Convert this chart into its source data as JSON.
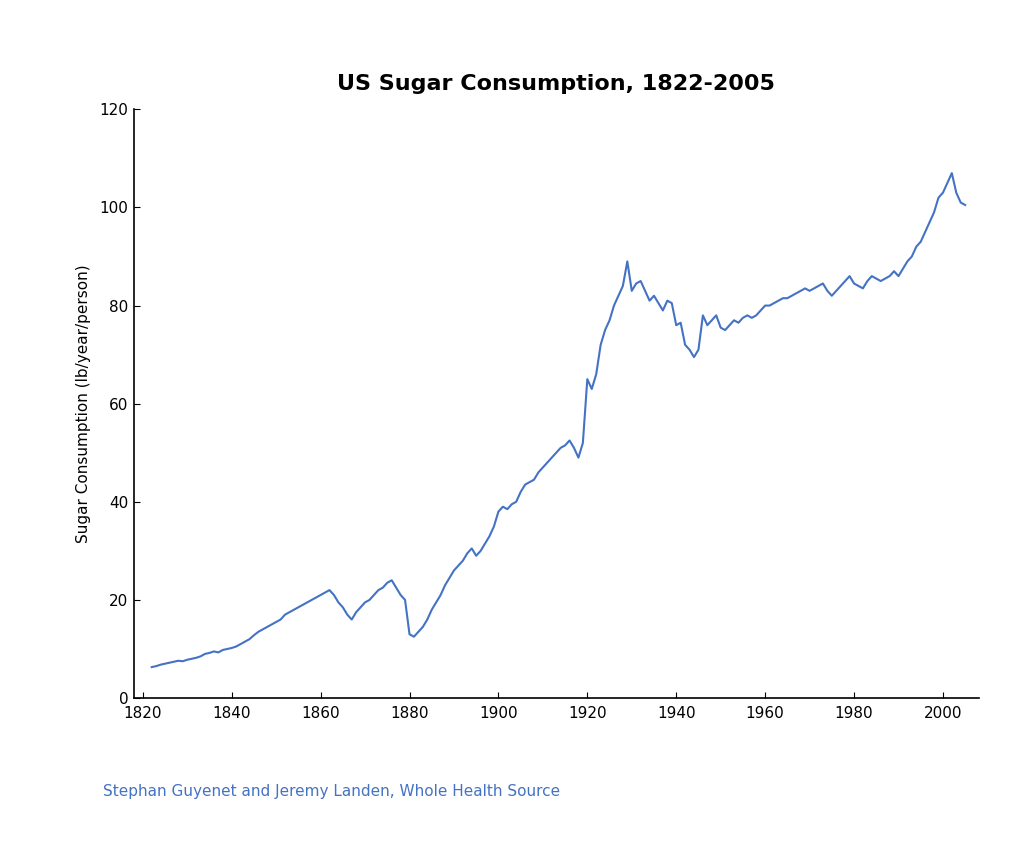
{
  "title": "US Sugar Consumption, 1822-2005",
  "xlabel": "",
  "ylabel": "Sugar Consumption (lb/year/person)",
  "source_text": "Stephan Guyenet and Jeremy Landen, Whole Health Source",
  "source_color": "#4472C4",
  "line_color": "#4472C4",
  "line_width": 1.5,
  "background_color": "#ffffff",
  "xlim": [
    1818,
    2008
  ],
  "ylim": [
    0,
    120
  ],
  "xticks": [
    1820,
    1840,
    1860,
    1880,
    1900,
    1920,
    1940,
    1960,
    1980,
    2000
  ],
  "yticks": [
    0,
    20,
    40,
    60,
    80,
    100,
    120
  ],
  "years": [
    1822,
    1823,
    1824,
    1825,
    1826,
    1827,
    1828,
    1829,
    1830,
    1831,
    1832,
    1833,
    1834,
    1835,
    1836,
    1837,
    1838,
    1839,
    1840,
    1841,
    1842,
    1843,
    1844,
    1845,
    1846,
    1847,
    1848,
    1849,
    1850,
    1851,
    1852,
    1853,
    1854,
    1855,
    1856,
    1857,
    1858,
    1859,
    1860,
    1861,
    1862,
    1863,
    1864,
    1865,
    1866,
    1867,
    1868,
    1869,
    1870,
    1871,
    1872,
    1873,
    1874,
    1875,
    1876,
    1877,
    1878,
    1879,
    1880,
    1881,
    1882,
    1883,
    1884,
    1885,
    1886,
    1887,
    1888,
    1889,
    1890,
    1891,
    1892,
    1893,
    1894,
    1895,
    1896,
    1897,
    1898,
    1899,
    1900,
    1901,
    1902,
    1903,
    1904,
    1905,
    1906,
    1907,
    1908,
    1909,
    1910,
    1911,
    1912,
    1913,
    1914,
    1915,
    1916,
    1917,
    1918,
    1919,
    1920,
    1921,
    1922,
    1923,
    1924,
    1925,
    1926,
    1927,
    1928,
    1929,
    1930,
    1931,
    1932,
    1933,
    1934,
    1935,
    1936,
    1937,
    1938,
    1939,
    1940,
    1941,
    1942,
    1943,
    1944,
    1945,
    1946,
    1947,
    1948,
    1949,
    1950,
    1951,
    1952,
    1953,
    1954,
    1955,
    1956,
    1957,
    1958,
    1959,
    1960,
    1961,
    1962,
    1963,
    1964,
    1965,
    1966,
    1967,
    1968,
    1969,
    1970,
    1971,
    1972,
    1973,
    1974,
    1975,
    1976,
    1977,
    1978,
    1979,
    1980,
    1981,
    1982,
    1983,
    1984,
    1985,
    1986,
    1987,
    1988,
    1989,
    1990,
    1991,
    1992,
    1993,
    1994,
    1995,
    1996,
    1997,
    1998,
    1999,
    2000,
    2001,
    2002,
    2003,
    2004,
    2005
  ],
  "values": [
    6.3,
    6.5,
    6.8,
    7.0,
    7.2,
    7.4,
    7.6,
    7.5,
    7.8,
    8.0,
    8.2,
    8.5,
    9.0,
    9.2,
    9.5,
    9.3,
    9.8,
    10.0,
    10.2,
    10.5,
    11.0,
    11.5,
    12.0,
    12.8,
    13.5,
    14.0,
    14.5,
    15.0,
    15.5,
    16.0,
    17.0,
    17.5,
    18.0,
    18.5,
    19.0,
    19.5,
    20.0,
    20.5,
    21.0,
    21.5,
    22.0,
    21.0,
    19.5,
    18.5,
    17.0,
    16.0,
    17.5,
    18.5,
    19.5,
    20.0,
    21.0,
    22.0,
    22.5,
    23.5,
    24.0,
    22.5,
    21.0,
    20.0,
    13.0,
    12.5,
    13.5,
    14.5,
    16.0,
    18.0,
    19.5,
    21.0,
    23.0,
    24.5,
    26.0,
    27.0,
    28.0,
    29.5,
    30.5,
    29.0,
    30.0,
    31.5,
    33.0,
    35.0,
    38.0,
    39.0,
    38.5,
    39.5,
    40.0,
    42.0,
    43.5,
    44.0,
    44.5,
    46.0,
    47.0,
    48.0,
    49.0,
    50.0,
    51.0,
    51.5,
    52.5,
    51.0,
    49.0,
    52.0,
    65.0,
    63.0,
    66.0,
    72.0,
    75.0,
    77.0,
    80.0,
    82.0,
    84.0,
    89.0,
    83.0,
    84.5,
    85.0,
    83.0,
    81.0,
    82.0,
    80.5,
    79.0,
    81.0,
    80.5,
    76.0,
    76.5,
    72.0,
    71.0,
    69.5,
    71.0,
    78.0,
    76.0,
    77.0,
    78.0,
    75.5,
    75.0,
    76.0,
    77.0,
    76.5,
    77.5,
    78.0,
    77.5,
    78.0,
    79.0,
    80.0,
    80.0,
    80.5,
    81.0,
    81.5,
    81.5,
    82.0,
    82.5,
    83.0,
    83.5,
    83.0,
    83.5,
    84.0,
    84.5,
    83.0,
    82.0,
    83.0,
    84.0,
    85.0,
    86.0,
    84.5,
    84.0,
    83.5,
    85.0,
    86.0,
    85.5,
    85.0,
    85.5,
    86.0,
    87.0,
    86.0,
    87.5,
    89.0,
    90.0,
    92.0,
    93.0,
    95.0,
    97.0,
    99.0,
    102.0,
    103.0,
    105.0,
    107.0,
    103.0,
    101.0,
    100.5
  ],
  "title_fontsize": 16,
  "axis_label_fontsize": 11,
  "tick_fontsize": 11,
  "source_fontsize": 11
}
